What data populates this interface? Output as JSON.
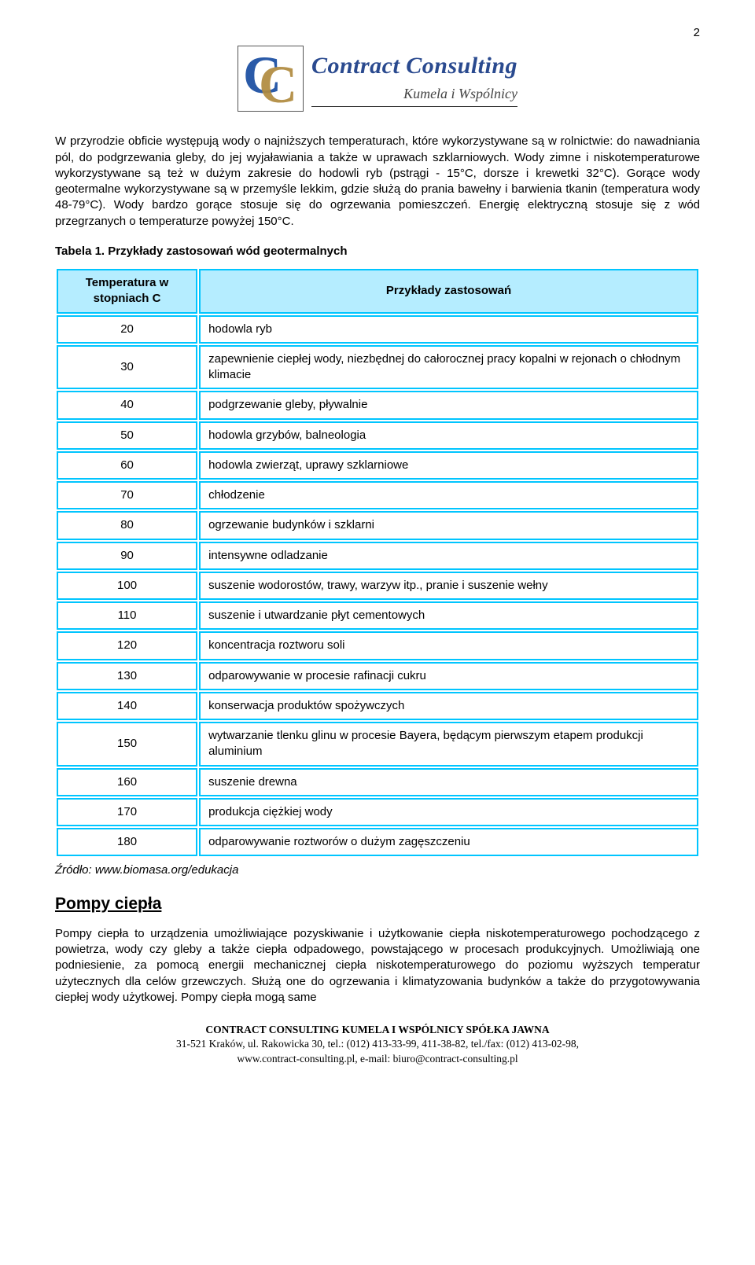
{
  "page_number": "2",
  "logo": {
    "company_line1": "Contract Consulting",
    "company_line2": "Kumela i Wspólnicy"
  },
  "paragraph1": "W przyrodzie obficie występują wody o najniższych temperaturach, które wykorzystywane są w rolnictwie: do nawadniania pól, do podgrzewania gleby, do jej wyjaławiania a także w uprawach szklarniowych. Wody zimne i niskotemperaturowe wykorzystywane są też w dużym zakresie do hodowli ryb (pstrągi - 15°C, dorsze i krewetki 32°C). Gorące wody geotermalne wykorzystywane są w przemyśle lekkim, gdzie służą do prania bawełny i barwienia tkanin (temperatura wody 48-79°C). Wody bardzo gorące stosuje się do ogrzewania pomieszczeń. Energię elektryczną stosuje się z wód przegrzanych o temperaturze powyżej 150°C.",
  "table_caption": "Tabela 1. Przykłady zastosowań wód geotermalnych",
  "table": {
    "border_color": "#00c5ff",
    "header_bg": "#b5edff",
    "header_temp": "Temperatura w stopniach C",
    "header_use": "Przykłady zastosowań",
    "col_temp_width": "22%",
    "col_use_width": "78%",
    "rows": [
      {
        "t": "20",
        "u": "hodowla ryb"
      },
      {
        "t": "30",
        "u": "zapewnienie ciepłej wody, niezbędnej do całorocznej pracy kopalni w rejonach o chłodnym klimacie"
      },
      {
        "t": "40",
        "u": "podgrzewanie gleby, pływalnie"
      },
      {
        "t": "50",
        "u": "hodowla grzybów, balneologia"
      },
      {
        "t": "60",
        "u": "hodowla zwierząt, uprawy szklarniowe"
      },
      {
        "t": "70",
        "u": "chłodzenie"
      },
      {
        "t": "80",
        "u": "ogrzewanie budynków i szklarni"
      },
      {
        "t": "90",
        "u": "intensywne odladzanie"
      },
      {
        "t": "100",
        "u": "suszenie wodorostów, trawy, warzyw itp., pranie i suszenie wełny"
      },
      {
        "t": "110",
        "u": "suszenie i utwardzanie płyt cementowych"
      },
      {
        "t": "120",
        "u": "koncentracja roztworu soli"
      },
      {
        "t": "130",
        "u": "odparowywanie w procesie rafinacji cukru"
      },
      {
        "t": "140",
        "u": "konserwacja produktów spożywczych"
      },
      {
        "t": "150",
        "u": "wytwarzanie tlenku glinu w procesie Bayera, będącym pierwszym etapem produkcji aluminium"
      },
      {
        "t": "160",
        "u": "suszenie drewna"
      },
      {
        "t": "170",
        "u": "produkcja ciężkiej wody"
      },
      {
        "t": "180",
        "u": "odparowywanie roztworów o dużym zagęszczeniu"
      }
    ]
  },
  "source": "Źródło: www.biomasa.org/edukacja",
  "section_heading": "Pompy ciepła",
  "paragraph2": "Pompy ciepła to urządzenia umożliwiające pozyskiwanie i użytkowanie ciepła niskotemperaturowego pochodzącego z powietrza, wody czy gleby a także ciepła odpadowego, powstającego w procesach produkcyjnych. Umożliwiają one podniesienie, za pomocą energii mechanicznej ciepła niskotemperaturowego do poziomu wyższych temperatur użytecznych dla celów grzewczych. Służą one do ogrzewania i klimatyzowania budynków a także do przygotowywania ciepłej wody użytkowej. Pompy ciepła mogą same",
  "footer": {
    "line1": "CONTRACT CONSULTING KUMELA I WSPÓLNICY SPÓŁKA JAWNA",
    "line2": "31-521 Kraków, ul. Rakowicka 30, tel.: (012) 413-33-99, 411-38-82, tel./fax: (012) 413-02-98,",
    "line3": "www.contract-consulting.pl, e-mail: biuro@contract-consulting.pl"
  }
}
